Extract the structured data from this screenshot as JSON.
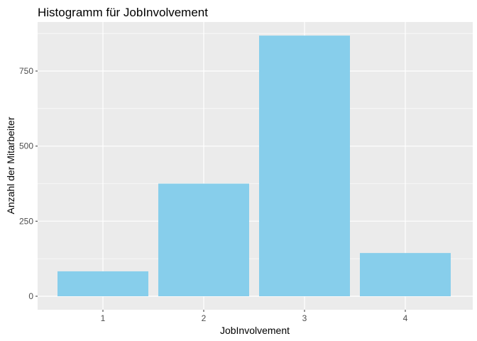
{
  "chart_data": {
    "type": "bar",
    "title": "Histogramm für JobInvolvement",
    "xlabel": "JobInvolvement",
    "ylabel": "Anzahl der Mitarbeiter",
    "categories": [
      "1",
      "2",
      "3",
      "4"
    ],
    "values": [
      83,
      375,
      868,
      144
    ],
    "ylim": [
      0,
      905
    ],
    "yticks": [
      0,
      250,
      500,
      750
    ],
    "grid": true,
    "legend": "none",
    "colors": {
      "bar": "#87CEEB",
      "panel": "#EBEBEB",
      "grid": "#FFFFFF"
    }
  }
}
